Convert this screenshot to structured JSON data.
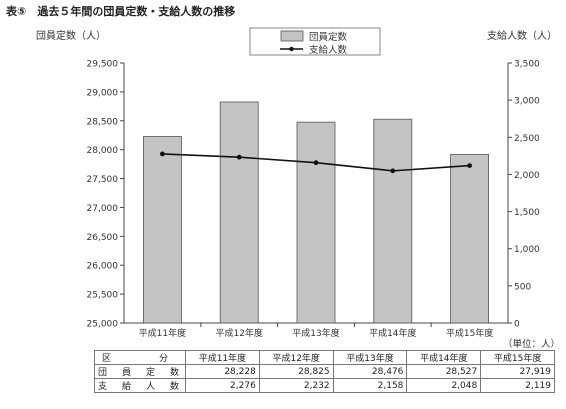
{
  "title": "表⑤　過去５年間の団員定数・支給人数の推移",
  "left_axis_title": "団員定数（人）",
  "right_axis_title": "支給人数（人）",
  "unit_note": "（単位：人）",
  "legend": {
    "bar_label": "団員定数",
    "line_label": "支給人数"
  },
  "table": {
    "header_label": "区　　分",
    "columns": [
      "平成11年度",
      "平成12年度",
      "平成13年度",
      "平成14年度",
      "平成15年度"
    ],
    "rows": [
      {
        "label": "団　員　定　数",
        "values": [
          "28,228",
          "28,825",
          "28,476",
          "28,527",
          "27,919"
        ]
      },
      {
        "label": "支　給　人　数",
        "values": [
          "2,276",
          "2,232",
          "2,158",
          "2,048",
          "2,119"
        ]
      }
    ]
  },
  "colors": {
    "bar_fill": "#c4c4c4",
    "bar_stroke": "#555555",
    "line": "#111111",
    "axis": "#444444"
  },
  "chart_data": {
    "type": "bar+line",
    "categories": [
      "平成11年度",
      "平成12年度",
      "平成13年度",
      "平成14年度",
      "平成15年度"
    ],
    "series": [
      {
        "name": "団員定数",
        "type": "bar",
        "axis": "left",
        "values": [
          28228,
          28825,
          28476,
          28527,
          27919
        ]
      },
      {
        "name": "支給人数",
        "type": "line",
        "axis": "right",
        "values": [
          2276,
          2232,
          2158,
          2048,
          2119
        ]
      }
    ],
    "left_axis": {
      "min": 25000,
      "max": 29500,
      "ticks": [
        25000,
        25500,
        26000,
        26500,
        27000,
        27500,
        28000,
        28500,
        29000,
        29500
      ],
      "tick_labels": [
        "25,000",
        "25,500",
        "26,000",
        "26,500",
        "27,000",
        "27,500",
        "28,000",
        "28,500",
        "29,000",
        "29,500"
      ]
    },
    "right_axis": {
      "min": 0,
      "max": 3500,
      "ticks": [
        0,
        500,
        1000,
        1500,
        2000,
        2500,
        3000,
        3500
      ],
      "tick_labels": [
        "0",
        "500",
        "1,000",
        "1,500",
        "2,000",
        "2,500",
        "3,000",
        "3,500"
      ]
    },
    "legend_position": "top-center",
    "grid": false
  }
}
